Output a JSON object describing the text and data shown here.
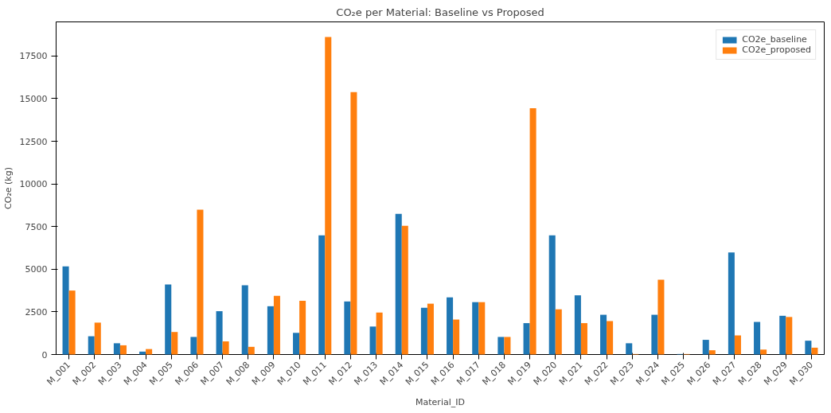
{
  "chart_data": {
    "type": "bar",
    "title": "CO₂e per Material: Baseline vs Proposed",
    "xlabel": "Material_ID",
    "ylabel": "CO₂e (kg)",
    "categories": [
      "M_001",
      "M_002",
      "M_003",
      "M_004",
      "M_005",
      "M_006",
      "M_007",
      "M_008",
      "M_009",
      "M_010",
      "M_011",
      "M_012",
      "M_013",
      "M_014",
      "M_015",
      "M_016",
      "M_017",
      "M_018",
      "M_019",
      "M_020",
      "M_021",
      "M_022",
      "M_023",
      "M_024",
      "M_025",
      "M_026",
      "M_027",
      "M_028",
      "M_029",
      "M_030"
    ],
    "series": [
      {
        "name": "CO2e_baseline",
        "color": "#1f77b4",
        "values": [
          5170,
          1070,
          660,
          170,
          4100,
          1030,
          2540,
          4060,
          2830,
          1270,
          6990,
          3110,
          1640,
          8250,
          2740,
          3350,
          3070,
          1030,
          1840,
          6990,
          3470,
          2330,
          660,
          2330,
          30,
          860,
          5980,
          1910,
          2270,
          810
        ]
      },
      {
        "name": "CO2e_proposed",
        "color": "#ff7f0e",
        "values": [
          3750,
          1870,
          540,
          320,
          1320,
          8490,
          770,
          450,
          3440,
          3150,
          18610,
          15380,
          2460,
          7550,
          2980,
          2050,
          3070,
          1030,
          14440,
          2650,
          1840,
          1960,
          30,
          4390,
          30,
          250,
          1120,
          290,
          2200,
          400
        ]
      }
    ],
    "ylim": [
      0,
      19500
    ],
    "yticks": [
      0,
      2500,
      5000,
      7500,
      10000,
      12500,
      15000,
      17500
    ],
    "grid": false,
    "legend": "top right"
  }
}
